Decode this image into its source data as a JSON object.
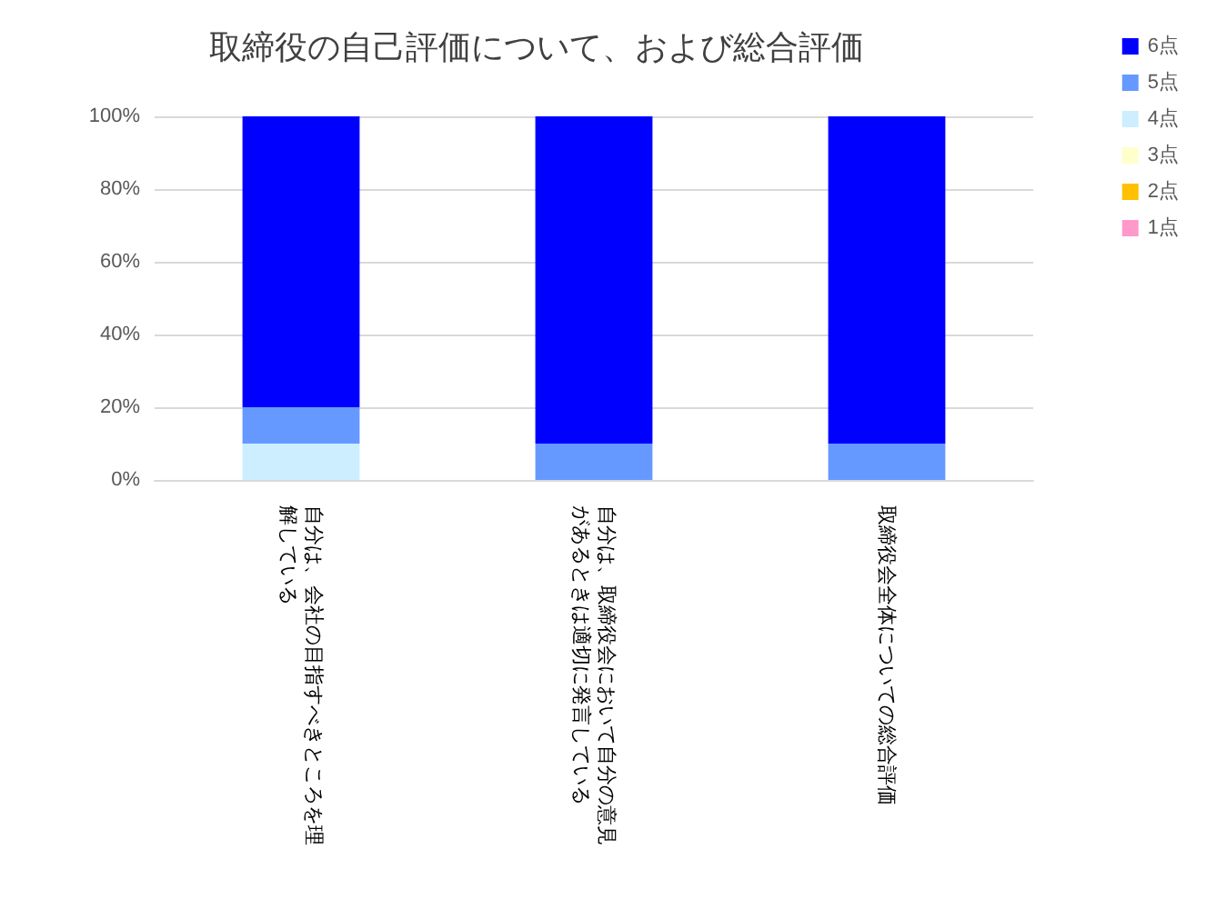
{
  "chart_data": {
    "type": "bar",
    "title": "取締役の自己評価について、および総合評価",
    "categories": [
      "自分は、会社の目指すべきところを理解している",
      "自分は、取締役会において自分の意見があるときは適切に発言している",
      "取締役会全体についての総合評価"
    ],
    "stacked": true,
    "series": [
      {
        "name": "1点",
        "color": "#ff99cc",
        "values": [
          0,
          0,
          0
        ]
      },
      {
        "name": "2点",
        "color": "#ffc000",
        "values": [
          0,
          0,
          0
        ]
      },
      {
        "name": "3点",
        "color": "#ffffcc",
        "values": [
          0,
          0,
          0
        ]
      },
      {
        "name": "4点",
        "color": "#cceeff",
        "values": [
          10,
          0,
          0
        ]
      },
      {
        "name": "5点",
        "color": "#6699ff",
        "values": [
          10,
          10,
          10
        ]
      },
      {
        "name": "6点",
        "color": "#0000ff",
        "values": [
          80,
          90,
          90
        ]
      }
    ],
    "ylim": [
      0,
      100
    ],
    "yticks": [
      {
        "value": 0,
        "label": "0%"
      },
      {
        "value": 20,
        "label": "20%"
      },
      {
        "value": 40,
        "label": "40%"
      },
      {
        "value": 60,
        "label": "60%"
      },
      {
        "value": 80,
        "label": "80%"
      },
      {
        "value": 100,
        "label": "100%"
      }
    ],
    "grid": "y",
    "legend": "top right"
  }
}
